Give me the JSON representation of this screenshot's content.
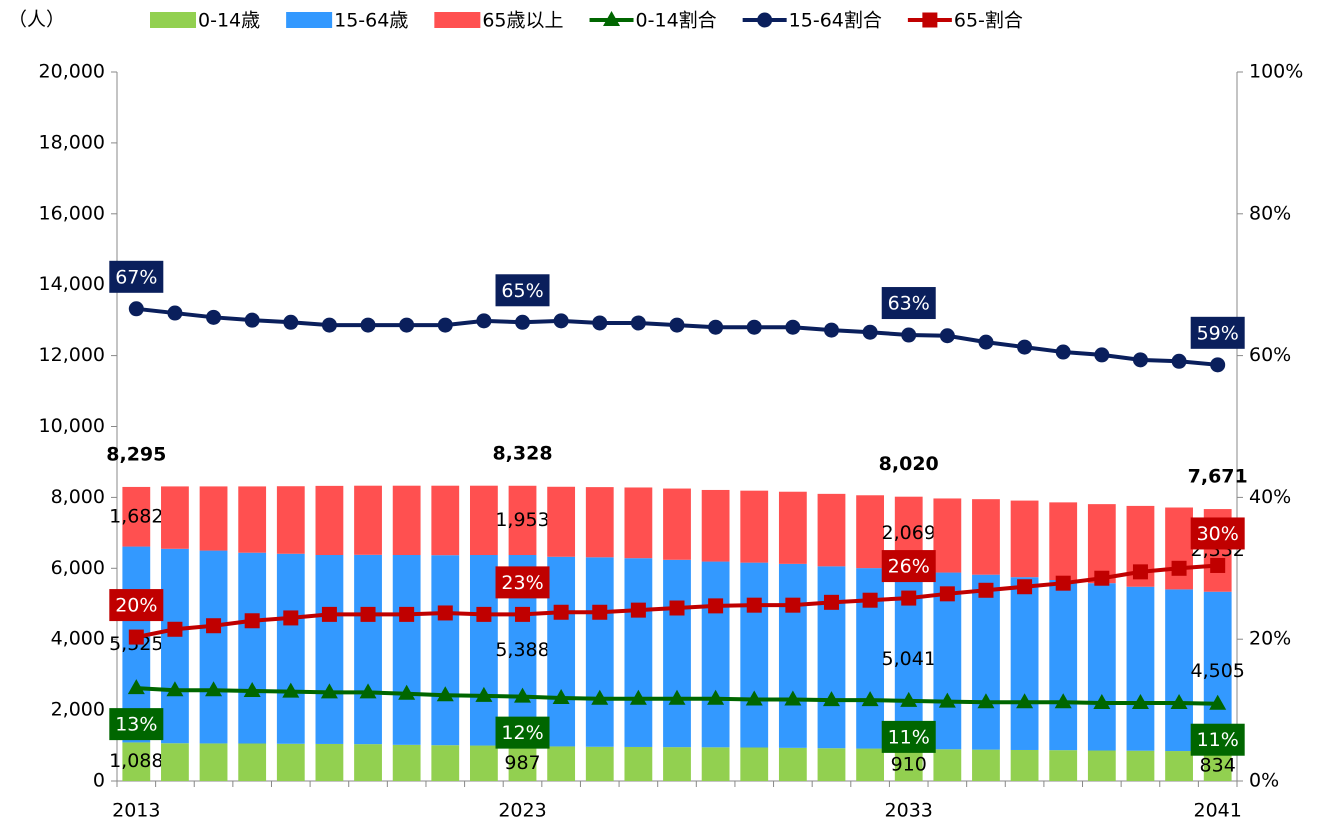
{
  "chart_data": {
    "type": "bar",
    "y_label": "（人）",
    "categories": [
      "2013",
      null,
      null,
      null,
      null,
      null,
      null,
      null,
      null,
      null,
      "2023",
      null,
      null,
      null,
      null,
      null,
      null,
      null,
      null,
      null,
      "2033",
      null,
      null,
      null,
      null,
      null,
      null,
      null,
      "2041"
    ],
    "ylim": [
      0,
      20000
    ],
    "yticks": [
      0,
      {
        "value": 2000,
        "label": "2,000"
      },
      {
        "value": 4000,
        "label": "4,000"
      },
      {
        "value": 6000,
        "label": "6,000"
      },
      {
        "value": 8000,
        "label": "8,000"
      },
      {
        "value": 10000,
        "label": "10,000"
      },
      {
        "value": 12000,
        "label": "12,000"
      },
      {
        "value": 14000,
        "label": "14,000"
      },
      {
        "value": 16000,
        "label": "16,000"
      },
      {
        "value": 18000,
        "label": "18,000"
      },
      {
        "value": 20000,
        "label": "20,000"
      }
    ],
    "y2lim": [
      0,
      100
    ],
    "y2ticks": [
      {
        "value": 0,
        "label": "0%"
      },
      {
        "value": 20,
        "label": "20%"
      },
      {
        "value": 40,
        "label": "40%"
      },
      {
        "value": 60,
        "label": "60%"
      },
      {
        "value": 80,
        "label": "80%"
      },
      {
        "value": 100,
        "label": "100%"
      }
    ],
    "legend": "top",
    "series": [
      {
        "name": "0-14歳",
        "type": "bar",
        "color": "#92d050",
        "values": [
          1088,
          1065,
          1060,
          1058,
          1050,
          1045,
          1040,
          1020,
          1010,
          1000,
          987,
          975,
          965,
          960,
          955,
          950,
          945,
          935,
          925,
          915,
          910,
          895,
          885,
          875,
          870,
          860,
          855,
          845,
          834
        ],
        "value_labels": [
          "1,088",
          null,
          null,
          null,
          null,
          null,
          null,
          null,
          null,
          null,
          "987",
          null,
          null,
          null,
          null,
          null,
          null,
          null,
          null,
          null,
          "910",
          null,
          null,
          null,
          null,
          null,
          null,
          null,
          "834"
        ]
      },
      {
        "name": "15-64歳",
        "type": "bar",
        "color": "#3399ff",
        "values": [
          5525,
          5485,
          5440,
          5382,
          5360,
          5330,
          5340,
          5355,
          5360,
          5375,
          5388,
          5350,
          5345,
          5325,
          5285,
          5240,
          5215,
          5190,
          5130,
          5090,
          5041,
          4985,
          4935,
          4875,
          4800,
          4720,
          4625,
          4560,
          4505
        ],
        "value_labels": [
          "5,525",
          null,
          null,
          null,
          null,
          null,
          null,
          null,
          null,
          null,
          "5,388",
          null,
          null,
          null,
          null,
          null,
          null,
          null,
          null,
          null,
          "5,041",
          null,
          null,
          null,
          null,
          null,
          null,
          null,
          "4,505"
        ]
      },
      {
        "name": "65歳以上",
        "type": "bar",
        "color": "#ff5050",
        "values": [
          1682,
          1760,
          1810,
          1870,
          1905,
          1950,
          1950,
          1955,
          1960,
          1955,
          1953,
          1975,
          1980,
          1995,
          2010,
          2020,
          2030,
          2035,
          2045,
          2055,
          2069,
          2090,
          2130,
          2160,
          2190,
          2230,
          2280,
          2310,
          2332
        ],
        "value_labels": [
          "1,682",
          null,
          null,
          null,
          null,
          null,
          null,
          null,
          null,
          null,
          "1,953",
          null,
          null,
          null,
          null,
          null,
          null,
          null,
          null,
          null,
          "2,069",
          null,
          null,
          null,
          null,
          null,
          null,
          null,
          "2,332"
        ]
      },
      {
        "name": "0-14割合",
        "type": "line",
        "axis": "y2",
        "color": "#006600",
        "marker": "triangle",
        "values": [
          13.1,
          12.8,
          12.8,
          12.7,
          12.6,
          12.5,
          12.5,
          12.3,
          12.1,
          12.0,
          11.9,
          11.7,
          11.6,
          11.6,
          11.6,
          11.6,
          11.5,
          11.5,
          11.4,
          11.4,
          11.3,
          11.2,
          11.1,
          11.1,
          11.1,
          11.0,
          11.0,
          11.0,
          10.9
        ],
        "value_labels": [
          "13%",
          null,
          null,
          null,
          null,
          null,
          null,
          null,
          null,
          null,
          "12%",
          null,
          null,
          null,
          null,
          null,
          null,
          null,
          null,
          null,
          "11%",
          null,
          null,
          null,
          null,
          null,
          null,
          null,
          "11%"
        ]
      },
      {
        "name": "15-64割合",
        "type": "line",
        "axis": "y2",
        "color": "#0a1f5c",
        "marker": "circle",
        "values": [
          66.6,
          66.0,
          65.4,
          65.0,
          64.7,
          64.3,
          64.3,
          64.3,
          64.3,
          64.9,
          64.7,
          64.9,
          64.6,
          64.6,
          64.3,
          64.0,
          64.0,
          64.0,
          63.6,
          63.3,
          62.9,
          62.8,
          61.9,
          61.2,
          60.5,
          60.1,
          59.4,
          59.2,
          58.7
        ],
        "value_labels": [
          "67%",
          null,
          null,
          null,
          null,
          null,
          null,
          null,
          null,
          null,
          "65%",
          null,
          null,
          null,
          null,
          null,
          null,
          null,
          null,
          null,
          "63%",
          null,
          null,
          null,
          null,
          null,
          null,
          null,
          "59%"
        ]
      },
      {
        "name": "65-割合",
        "type": "line",
        "axis": "y2",
        "color": "#c00000",
        "marker": "square",
        "values": [
          20.3,
          21.4,
          21.9,
          22.6,
          23.0,
          23.5,
          23.5,
          23.5,
          23.7,
          23.5,
          23.5,
          23.8,
          23.8,
          24.1,
          24.4,
          24.7,
          24.8,
          24.8,
          25.2,
          25.5,
          25.8,
          26.4,
          26.9,
          27.4,
          27.9,
          28.6,
          29.5,
          30.0,
          30.4
        ],
        "value_labels": [
          "20%",
          null,
          null,
          null,
          null,
          null,
          null,
          null,
          null,
          null,
          "23%",
          null,
          null,
          null,
          null,
          null,
          null,
          null,
          null,
          null,
          "26%",
          null,
          null,
          null,
          null,
          null,
          null,
          null,
          "30%"
        ]
      }
    ],
    "totals": {
      "values": [
        8295,
        null,
        null,
        null,
        null,
        null,
        null,
        null,
        null,
        null,
        8328,
        null,
        null,
        null,
        null,
        null,
        null,
        null,
        null,
        null,
        8020,
        null,
        null,
        null,
        null,
        null,
        null,
        null,
        7671
      ],
      "value_labels": [
        "8,295",
        null,
        null,
        null,
        null,
        null,
        null,
        null,
        null,
        null,
        "8,328",
        null,
        null,
        null,
        null,
        null,
        null,
        null,
        null,
        null,
        "8,020",
        null,
        null,
        null,
        null,
        null,
        null,
        null,
        "7,671"
      ]
    }
  }
}
